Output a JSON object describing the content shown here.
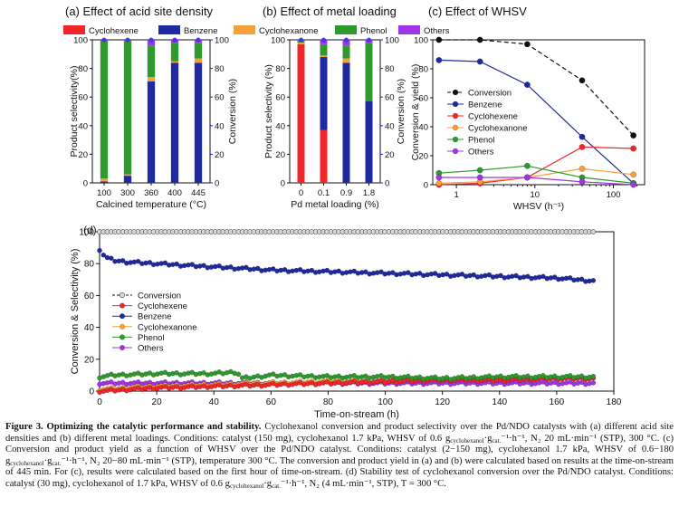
{
  "panel_titles": {
    "a": "(a) Effect of acid site density",
    "b": "(b) Effect of metal loading",
    "c": "(c) Effect of WHSV",
    "d": "(d)"
  },
  "top_legend": [
    "Cyclohexene",
    "Benzene",
    "Cyclohexanone",
    "Phenol",
    "Others"
  ],
  "axis_labels": {
    "a_y": "Product selectivity(%)",
    "a_y2": "Conversion (%)",
    "a_x": "Calcined temperature (°C)",
    "b_y": "Product selectivity (%)",
    "b_y2": "Conversion (%)",
    "b_x": "Pd metal loading (%)",
    "c_y": "Conversion & yield (%)",
    "c_x": "WHSV (h⁻¹)",
    "d_y": "Conversion & Selectivity (%)",
    "d_x": "Time-on-stream (h)"
  },
  "colors": {
    "Cyclohexene": "#f0262a",
    "Benzene": "#1f2aa0",
    "Cyclohexanone": "#f5a03a",
    "Phenol": "#2e9a2e",
    "Others": "#a035e8",
    "Conversion_dot": "#3a3aff",
    "Conversion_c": "#111111"
  },
  "chart_data": [
    {
      "type": "bar",
      "panel": "a",
      "stacked": true,
      "title": "(a) Effect of acid site density",
      "xlabel": "Calcined temperature (°C)",
      "ylabel": "Product selectivity(%)",
      "y2label": "Conversion (%)",
      "ylim": [
        0,
        100
      ],
      "categories": [
        "100",
        "300",
        "360",
        "400",
        "445"
      ],
      "series": [
        {
          "name": "Cyclohexene",
          "values": [
            0,
            0,
            0,
            0,
            0
          ]
        },
        {
          "name": "Benzene",
          "values": [
            1,
            5,
            71,
            84,
            84
          ]
        },
        {
          "name": "Cyclohexanone",
          "values": [
            2,
            1,
            3,
            1,
            3
          ]
        },
        {
          "name": "Phenol",
          "values": [
            96,
            93,
            22,
            13,
            11
          ]
        },
        {
          "name": "Others",
          "values": [
            1,
            1,
            4,
            2,
            2
          ]
        }
      ],
      "conversion": [
        100,
        100,
        100,
        100,
        100
      ]
    },
    {
      "type": "bar",
      "panel": "b",
      "stacked": true,
      "title": "(b) Effect of metal loading",
      "xlabel": "Pd metal loading (%)",
      "ylabel": "Product selectivity (%)",
      "y2label": "Conversion (%)",
      "ylim": [
        0,
        100
      ],
      "categories": [
        "0",
        "0.1",
        "0.9",
        "1.8"
      ],
      "series": [
        {
          "name": "Cyclohexene",
          "values": [
            97,
            37,
            0,
            0
          ]
        },
        {
          "name": "Benzene",
          "values": [
            0,
            51,
            84,
            57
          ]
        },
        {
          "name": "Cyclohexanone",
          "values": [
            1,
            1,
            3,
            0
          ]
        },
        {
          "name": "Phenol",
          "values": [
            1,
            8,
            9,
            41
          ]
        },
        {
          "name": "Others",
          "values": [
            1,
            3,
            4,
            2
          ]
        }
      ],
      "conversion": [
        100,
        100,
        100,
        100
      ]
    },
    {
      "type": "line",
      "panel": "c",
      "title": "(c) Effect of WHSV",
      "xlabel": "WHSV (h⁻¹)",
      "ylabel": "Conversion & yield (%)",
      "xscale": "log",
      "xlim": [
        0.5,
        250
      ],
      "ylim": [
        0,
        100
      ],
      "xticks": [
        1,
        10,
        100
      ],
      "series": [
        {
          "name": "Conversion",
          "x": [
            0.6,
            2,
            8,
            40,
            180
          ],
          "y": [
            100,
            100,
            97,
            72,
            34
          ]
        },
        {
          "name": "Benzene",
          "x": [
            0.6,
            2,
            8,
            40,
            180
          ],
          "y": [
            86,
            85,
            69,
            33,
            1
          ]
        },
        {
          "name": "Cyclohexene",
          "x": [
            0.6,
            2,
            8,
            40,
            180
          ],
          "y": [
            0,
            1,
            5,
            26,
            25
          ]
        },
        {
          "name": "Cyclohexanone",
          "x": [
            0.6,
            2,
            8,
            40,
            180
          ],
          "y": [
            1,
            2,
            5,
            11,
            7
          ]
        },
        {
          "name": "Phenol",
          "x": [
            0.6,
            2,
            8,
            40,
            180
          ],
          "y": [
            8,
            10,
            13,
            5,
            1
          ]
        },
        {
          "name": "Others",
          "x": [
            0.6,
            2,
            8,
            40,
            180
          ],
          "y": [
            5,
            5,
            5,
            2,
            0
          ]
        }
      ]
    },
    {
      "type": "scatter",
      "panel": "d",
      "title": "(d)",
      "xlabel": "Time-on-stream (h)",
      "ylabel": "Conversion & Selectivity (%)",
      "xlim": [
        0,
        180
      ],
      "ylim": [
        0,
        100
      ],
      "xticks": [
        0,
        20,
        40,
        60,
        80,
        100,
        120,
        140,
        160,
        180
      ],
      "yticks": [
        0,
        20,
        40,
        60,
        80,
        100
      ],
      "legend": [
        "Conversion",
        "Cyclohexene",
        "Benzene",
        "Cyclohexanone",
        "Phenol",
        "Others"
      ],
      "series": [
        {
          "name": "Conversion",
          "x": [
            0,
            20,
            40,
            60,
            80,
            100,
            120,
            140,
            160,
            174
          ],
          "y": [
            100,
            100,
            100,
            100,
            100,
            100,
            100,
            100,
            100,
            100
          ]
        },
        {
          "name": "Benzene",
          "x": [
            0,
            2,
            5,
            10,
            20,
            30,
            40,
            50,
            60,
            80,
            100,
            120,
            140,
            160,
            174
          ],
          "y": [
            89,
            84,
            82,
            81,
            80,
            79,
            78,
            77,
            76,
            75,
            74,
            73,
            72,
            71,
            69
          ]
        },
        {
          "name": "Phenol",
          "x": [
            0,
            5,
            20,
            40,
            48,
            50,
            60,
            80,
            100,
            120,
            140,
            160,
            174
          ],
          "y": [
            9,
            10,
            11,
            11,
            12,
            8,
            10,
            9,
            9,
            8,
            9,
            9,
            9
          ]
        },
        {
          "name": "Cyclohexene",
          "x": [
            0,
            10,
            20,
            40,
            60,
            80,
            100,
            120,
            140,
            160,
            174
          ],
          "y": [
            0,
            1,
            2,
            3,
            4,
            5,
            6,
            7,
            7,
            8,
            8
          ]
        },
        {
          "name": "Cyclohexanone",
          "x": [
            0,
            10,
            20,
            40,
            60,
            80,
            100,
            120,
            140,
            160,
            174
          ],
          "y": [
            1,
            2,
            3,
            4,
            5,
            6,
            6,
            7,
            7,
            8,
            8
          ]
        },
        {
          "name": "Others",
          "x": [
            0,
            20,
            40,
            60,
            80,
            100,
            120,
            140,
            160,
            174
          ],
          "y": [
            5,
            5,
            5,
            5,
            5,
            5,
            5,
            5,
            5,
            5
          ]
        }
      ]
    }
  ],
  "caption": {
    "label": "Figure 3. Optimizing the catalytic performance and stability.",
    "sentences": [
      " Cyclohexanol conversion and product selectivity over the Pd/NDO catalysts with (a) different acid site densities and (b) different metal loadings. Conditions: catalyst (150 mg), cyclohexanol 1.7 kPa, WHSV of 0.6 g",
      "cyclohexanol",
      "·g",
      "cat.",
      "⁻¹·h⁻¹, N₂ 20 mL·min⁻¹ (STP), 300 °C. (c) Conversion and product yield as a function of WHSV over the Pd/NDO catalyst. Conditions: catalyst (2−150 mg), cyclohexanol 1.7 kPa, WHSV of 0.6−180 g",
      "cyclohexanol",
      "·g",
      "cat.",
      "⁻¹·h⁻¹, N₂ 20−80 mL·min⁻¹ (STP), temperature 300 °C. The conversion and product yield in (a) and (b) were calculated based on results at the time-on-stream of 445 min. For (c), results were calculated based on the first hour of time-on-stream. (d) Stability test of cyclohexanol conversion over the Pd/NDO catalyst. Conditions: catalyst (30 mg), cyclohexanol of 1.7 kPa, WHSV of 0.6 g",
      "cyclohexanol",
      "·g",
      "cat.",
      "⁻¹·h⁻¹, N₂ (4 mL·min⁻¹, STP), T = 300 °C."
    ]
  }
}
